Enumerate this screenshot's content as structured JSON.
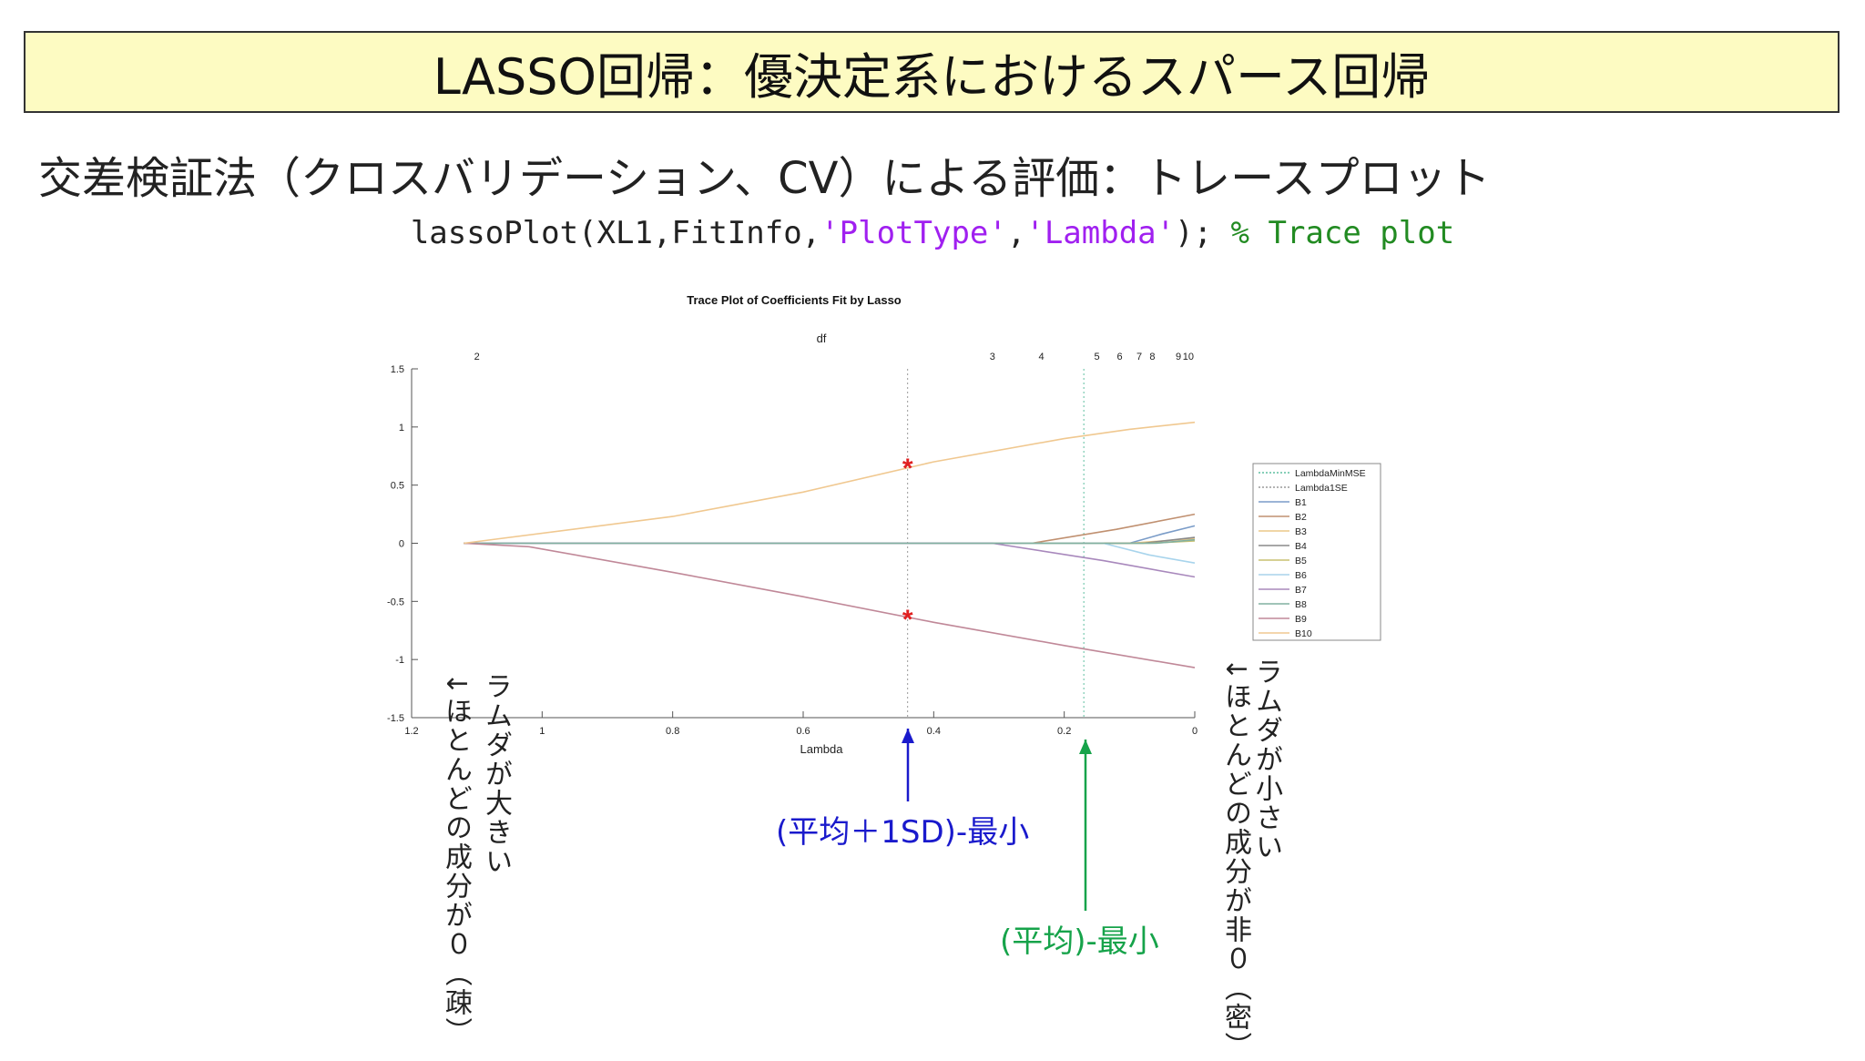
{
  "slide": {
    "title": "LASSO回帰：優決定系におけるスパース回帰",
    "subtitle": "交差検証法（クロスバリデーション、CV）による評価：トレースプロット",
    "code": {
      "part1": "lassoPlot(XL1,FitInfo,",
      "str1": "'PlotType'",
      "comma": ",",
      "str2": "'Lambda'",
      "part2": "); ",
      "comment": "% Trace plot"
    }
  },
  "annotations": {
    "left_col1": "ラムダが大きい",
    "left_col2": "↓ほとんどの成分が０（疎）",
    "right_col1": "ラムダが小さい",
    "right_col2": "↓ほとんどの成分が非０（密）",
    "blue_label": "(平均＋1SD)-最小",
    "green_label": "(平均)-最小",
    "colors": {
      "blue": "#1a1acc",
      "green": "#16a34a",
      "star": "#e02020"
    }
  },
  "chart_data": {
    "type": "line",
    "title": "Trace Plot of Coefficients Fit by Lasso",
    "xlabel": "Lambda",
    "top_axis_label": "df",
    "xlim": [
      1.2,
      0
    ],
    "ylim": [
      -1.5,
      1.5
    ],
    "x_ticks": [
      1.2,
      1,
      0.8,
      0.6,
      0.4,
      0.2,
      0
    ],
    "x_tick_labels": [
      "1.2",
      "1",
      "0.8",
      "0.6",
      "0.4",
      "0.2",
      "0"
    ],
    "y_ticks": [
      1.5,
      1,
      0.5,
      0,
      -0.5,
      -1,
      -1.5
    ],
    "y_tick_labels": [
      "1.5",
      "1",
      "0.5",
      "0",
      "-0.5",
      "-1",
      "-1.5"
    ],
    "df_ticks": [
      {
        "lambda": 1.1,
        "label": "2"
      },
      {
        "lambda": 0.31,
        "label": "3"
      },
      {
        "lambda": 0.235,
        "label": "4"
      },
      {
        "lambda": 0.15,
        "label": "5"
      },
      {
        "lambda": 0.115,
        "label": "6"
      },
      {
        "lambda": 0.085,
        "label": "7"
      },
      {
        "lambda": 0.065,
        "label": "8"
      },
      {
        "lambda": 0.025,
        "label": "9"
      },
      {
        "lambda": 0.01,
        "label": "10"
      }
    ],
    "lambda_1se": 0.44,
    "lambda_min_mse": 0.17,
    "grid": false,
    "legend_position": "right",
    "legend": [
      "LambdaMinMSE",
      "Lambda1SE",
      "B1",
      "B2",
      "B3",
      "B4",
      "B5",
      "B6",
      "B7",
      "B8",
      "B9",
      "B10"
    ],
    "markers": [
      {
        "x": 0.44,
        "y": 0.66,
        "symbol": "*"
      },
      {
        "x": 0.44,
        "y": -0.64,
        "symbol": "*"
      }
    ],
    "series": [
      {
        "name": "B1",
        "color": "#7a9cc8",
        "x": [
          1.12,
          0.1,
          0.05,
          0
        ],
        "y": [
          0,
          0,
          0.08,
          0.15
        ]
      },
      {
        "name": "B2",
        "color": "#c09070",
        "x": [
          1.12,
          0.25,
          0.12,
          0
        ],
        "y": [
          0,
          0,
          0.12,
          0.25
        ]
      },
      {
        "name": "B3",
        "color": "#ecc888",
        "x": [
          1.12,
          0.1,
          0
        ],
        "y": [
          0,
          0,
          0.04
        ]
      },
      {
        "name": "B4",
        "color": "#8a8a8a",
        "x": [
          1.12,
          0.08,
          0
        ],
        "y": [
          0,
          0,
          0.05
        ]
      },
      {
        "name": "B5",
        "color": "#c8c070",
        "x": [
          1.12,
          0.07,
          0
        ],
        "y": [
          0,
          0,
          0.02
        ]
      },
      {
        "name": "B6",
        "color": "#a8d4ec",
        "x": [
          1.12,
          0.14,
          0.07,
          0
        ],
        "y": [
          0,
          0,
          -0.1,
          -0.17
        ]
      },
      {
        "name": "B7",
        "color": "#a888bc",
        "x": [
          1.12,
          0.31,
          0.14,
          0
        ],
        "y": [
          0,
          0,
          -0.15,
          -0.29
        ]
      },
      {
        "name": "B8",
        "color": "#80b0a0",
        "x": [
          1.12,
          0.06,
          0
        ],
        "y": [
          0,
          0,
          0.03
        ]
      },
      {
        "name": "B9",
        "color": "#c08898",
        "x": [
          1.12,
          1.02,
          0.8,
          0.6,
          0.4,
          0.2,
          0
        ],
        "y": [
          0,
          -0.03,
          -0.25,
          -0.46,
          -0.68,
          -0.88,
          -1.07
        ]
      },
      {
        "name": "B10",
        "color": "#f0c890",
        "x": [
          1.12,
          0.8,
          0.6,
          0.4,
          0.2,
          0.1,
          0
        ],
        "y": [
          0,
          0.23,
          0.44,
          0.7,
          0.9,
          0.98,
          1.04
        ]
      }
    ]
  }
}
